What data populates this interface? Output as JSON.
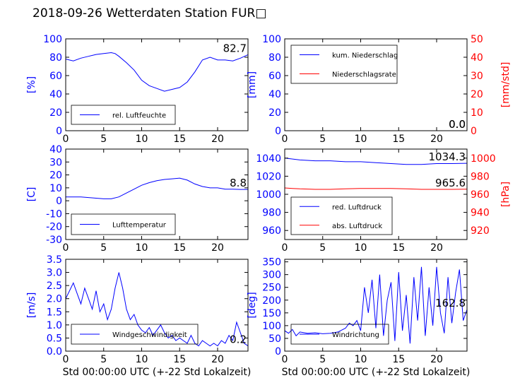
{
  "figure": {
    "title": "2018-09-26 Wetterdaten Station FUR□"
  },
  "colors": {
    "primary": "#0000ff",
    "secondary": "#ff0000",
    "tertiary": "#7777ff",
    "axis": "#000000"
  },
  "chart_data": [
    {
      "type": "line",
      "panel": "humidity",
      "xlim": [
        0,
        24
      ],
      "ylim": [
        0,
        100
      ],
      "xticks": [
        0,
        5,
        10,
        15,
        20
      ],
      "yticks": [
        0,
        20,
        40,
        60,
        80,
        100
      ],
      "ylabel": "[%]",
      "xlabel": "",
      "series": [
        {
          "name": "rel. Luftfeuchte",
          "color": "#0000ff",
          "x": [
            0,
            1,
            2,
            3,
            4,
            5,
            6,
            6.5,
            7,
            8,
            9,
            10,
            11,
            12,
            13,
            14,
            15,
            16,
            17,
            18,
            19,
            20,
            21,
            22,
            23,
            24
          ],
          "y": [
            78,
            76,
            79,
            81,
            83,
            84,
            85,
            84,
            81,
            74,
            66,
            55,
            49,
            46,
            43,
            45,
            47,
            53,
            64,
            77,
            80,
            77,
            77,
            76,
            79,
            82.7
          ]
        }
      ],
      "last_value": "82.7",
      "legend": "bottom-left"
    },
    {
      "type": "line",
      "panel": "precipitation",
      "xlim": [
        0,
        24
      ],
      "ylim": [
        0,
        100
      ],
      "y2lim": [
        0,
        50
      ],
      "xticks": [
        0,
        5,
        10,
        15,
        20
      ],
      "yticks": [
        0,
        20,
        40,
        60,
        80,
        100
      ],
      "y2ticks": [
        0,
        10,
        20,
        30,
        40,
        50
      ],
      "ylabel": "[mm]",
      "y2label": "[mm/std]",
      "series": [
        {
          "name": "kum. Niederschlag",
          "color": "#0000ff",
          "x": [
            0,
            24
          ],
          "y": [
            0,
            0
          ]
        },
        {
          "name": "Niederschlagsrate",
          "color": "#ff0000",
          "axis": "right",
          "x": [
            0,
            24
          ],
          "y": [
            0,
            0
          ]
        }
      ],
      "last_value": "0.0",
      "last_value_2": "0.0",
      "legend": "top-left"
    },
    {
      "type": "line",
      "panel": "temperature",
      "xlim": [
        0,
        24
      ],
      "ylim": [
        -30,
        40
      ],
      "xticks": [
        0,
        5,
        10,
        15,
        20
      ],
      "yticks": [
        -30,
        -20,
        -10,
        0,
        10,
        20,
        30,
        40
      ],
      "ylabel": "[C]",
      "series": [
        {
          "name": "Lufttemperatur",
          "color": "#0000ff",
          "x": [
            0,
            1,
            2,
            3,
            4,
            5,
            6,
            7,
            8,
            9,
            10,
            11,
            12,
            13,
            14,
            15,
            16,
            17,
            18,
            19,
            20,
            21,
            22,
            23,
            24
          ],
          "y": [
            3,
            3,
            3,
            2.5,
            2,
            1.5,
            1.5,
            3,
            6,
            9,
            12,
            14,
            15.5,
            16.5,
            17,
            17.5,
            16,
            13,
            11,
            10,
            10,
            9,
            9,
            8.8,
            8.8
          ]
        }
      ],
      "last_value": "8.8",
      "legend": "bottom-left"
    },
    {
      "type": "line",
      "panel": "pressure",
      "xlim": [
        0,
        24
      ],
      "ylim": [
        950,
        1050
      ],
      "y2lim": [
        910,
        1010
      ],
      "xticks": [
        0,
        5,
        10,
        15,
        20
      ],
      "yticks": [
        960,
        980,
        1000,
        1020,
        1040
      ],
      "y2ticks": [
        920,
        940,
        960,
        980,
        1000
      ],
      "ylabel": "",
      "y2label": "[hPa]",
      "series": [
        {
          "name": "red. Luftdruck",
          "color": "#0000ff",
          "x": [
            0,
            2,
            4,
            6,
            8,
            10,
            12,
            14,
            16,
            18,
            20,
            22,
            24
          ],
          "y": [
            1040,
            1038,
            1037,
            1037,
            1036,
            1036,
            1035,
            1034,
            1033,
            1033,
            1034,
            1034,
            1034.3
          ]
        },
        {
          "name": "abs. Luftdruck",
          "color": "#ff0000",
          "axis": "right",
          "x": [
            0,
            1,
            2,
            4,
            6,
            8,
            10,
            12,
            14,
            16,
            18,
            20,
            22,
            24
          ],
          "y": [
            967,
            966.5,
            966,
            965.5,
            965.5,
            966,
            966.5,
            966.5,
            966.5,
            966,
            965.5,
            965.5,
            965.5,
            965.6
          ]
        }
      ],
      "last_value": "1034.3",
      "last_value_2": "965.6",
      "legend": "bottom-left"
    },
    {
      "type": "line",
      "panel": "wind-speed",
      "xlim": [
        0,
        24
      ],
      "ylim": [
        0,
        3.5
      ],
      "xticks": [
        0,
        5,
        10,
        15,
        20
      ],
      "yticks": [
        0.0,
        0.5,
        1.0,
        1.5,
        2.0,
        2.5,
        3.0,
        3.5
      ],
      "ylabel": "[m/s]",
      "xlabel": "Std 00:00:00 UTC (+-22 Std Lokalzeit)",
      "series": [
        {
          "name": "Windgeschwindigkeit",
          "color": "#0000ff",
          "x": [
            0,
            0.5,
            1,
            1.5,
            2,
            2.5,
            3,
            3.5,
            4,
            4.5,
            5,
            5.5,
            6,
            6.5,
            7,
            7.5,
            8,
            8.5,
            9,
            9.5,
            10,
            10.5,
            11,
            11.5,
            12,
            12.5,
            13,
            13.5,
            14,
            14.5,
            15,
            15.5,
            16,
            16.5,
            17,
            17.5,
            18,
            18.5,
            19,
            19.5,
            20,
            20.5,
            21,
            21.5,
            22,
            22.5,
            23,
            23.5,
            24
          ],
          "y": [
            2.0,
            2.3,
            2.6,
            2.2,
            1.8,
            2.4,
            2.0,
            1.6,
            2.3,
            1.5,
            1.8,
            1.2,
            1.6,
            2.4,
            3.0,
            2.4,
            1.6,
            1.2,
            1.4,
            1.0,
            0.8,
            0.7,
            0.9,
            0.6,
            0.8,
            1.0,
            0.7,
            0.5,
            0.6,
            0.4,
            0.5,
            0.4,
            0.3,
            0.6,
            0.3,
            0.2,
            0.4,
            0.3,
            0.2,
            0.3,
            0.2,
            0.4,
            0.3,
            0.6,
            0.4,
            1.1,
            0.7,
            0.3,
            0.2
          ]
        }
      ],
      "last_value": "0.2",
      "legend": "bottom-left"
    },
    {
      "type": "line",
      "panel": "wind-direction",
      "xlim": [
        0,
        24
      ],
      "ylim": [
        0,
        360
      ],
      "xticks": [
        0,
        5,
        10,
        15,
        20
      ],
      "yticks": [
        0,
        50,
        100,
        150,
        200,
        250,
        300,
        350
      ],
      "ylabel": "[deg]",
      "xlabel": "Std 00:00:00 UTC (+-22 Std Lokalzeit)",
      "series": [
        {
          "name": "Windrichtung",
          "color": "#0000ff",
          "x": [
            0,
            0.5,
            1,
            1.5,
            2,
            3,
            4,
            5,
            6,
            7,
            8,
            8.5,
            9,
            9.5,
            10,
            10.5,
            11,
            11.5,
            12,
            12.5,
            13,
            13.5,
            14,
            14.5,
            15,
            15.5,
            16,
            16.5,
            17,
            17.5,
            18,
            18.5,
            19,
            19.5,
            20,
            20.5,
            21,
            21.5,
            22,
            22.5,
            23,
            23.5,
            24
          ],
          "y": [
            80,
            70,
            85,
            60,
            75,
            70,
            72,
            68,
            70,
            75,
            90,
            110,
            100,
            120,
            80,
            250,
            150,
            280,
            90,
            300,
            60,
            200,
            270,
            40,
            310,
            80,
            220,
            30,
            290,
            120,
            330,
            60,
            250,
            100,
            330,
            150,
            70,
            290,
            110,
            230,
            320,
            120,
            162.8
          ]
        }
      ],
      "last_value": "162.8",
      "legend": "bottom-left"
    }
  ]
}
